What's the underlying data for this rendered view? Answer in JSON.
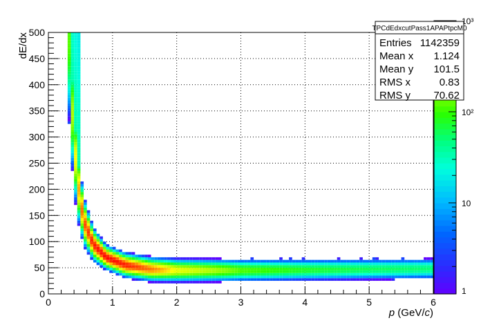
{
  "chart_data": {
    "type": "heatmap",
    "title": "",
    "xlabel_var": "p",
    "xlabel_unit_open": " (GeV/",
    "xlabel_unit_var": "c",
    "xlabel_unit_close": ")",
    "ylabel": "dE/dx",
    "xlim": [
      0,
      6
    ],
    "ylim": [
      0,
      500
    ],
    "zscale": "log",
    "zlim": [
      1,
      1000
    ],
    "grid": true,
    "x_ticks": [
      "0",
      "1",
      "2",
      "3",
      "4",
      "5",
      "6"
    ],
    "y_ticks": [
      "0",
      "50",
      "100",
      "150",
      "200",
      "250",
      "300",
      "350",
      "400",
      "450",
      "500"
    ],
    "z_ticks": [
      {
        "value": 1,
        "label": "1"
      },
      {
        "value": 10,
        "label": "10"
      },
      {
        "value": 100,
        "label": "10²"
      },
      {
        "value": 1000,
        "label": "10³"
      }
    ],
    "stats": {
      "name": "TPCdEdxcutPass1APAPtpcM0",
      "rows": [
        {
          "label": "Entries",
          "value": "1142359"
        },
        {
          "label": "Mean x",
          "value": "1.124"
        },
        {
          "label": "Mean y",
          "value": "101.5"
        },
        {
          "label": "RMS x",
          "value": "0.83"
        },
        {
          "label": "RMS y",
          "value": "70.62"
        }
      ]
    },
    "band_description": "Bethe-Bloch-like band: dE/dx falls steeply from above 500 at p≈0.3 GeV/c to a minimum of ~45 near p≈2 GeV/c, then stays roughly flat to p=6",
    "band_points": [
      {
        "p": 0.33,
        "dedx": 480,
        "counts": 120
      },
      {
        "p": 0.38,
        "dedx": 330,
        "counts": 200
      },
      {
        "p": 0.45,
        "dedx": 220,
        "counts": 400
      },
      {
        "p": 0.55,
        "dedx": 140,
        "counts": 700
      },
      {
        "p": 0.7,
        "dedx": 95,
        "counts": 900
      },
      {
        "p": 0.9,
        "dedx": 70,
        "counts": 1000
      },
      {
        "p": 1.2,
        "dedx": 55,
        "counts": 900
      },
      {
        "p": 1.6,
        "dedx": 47,
        "counts": 600
      },
      {
        "p": 2.0,
        "dedx": 45,
        "counts": 300
      },
      {
        "p": 3.0,
        "dedx": 45,
        "counts": 120
      },
      {
        "p": 4.0,
        "dedx": 46,
        "counts": 80
      },
      {
        "p": 5.0,
        "dedx": 47,
        "counts": 60
      },
      {
        "p": 6.0,
        "dedx": 48,
        "counts": 50
      }
    ]
  }
}
